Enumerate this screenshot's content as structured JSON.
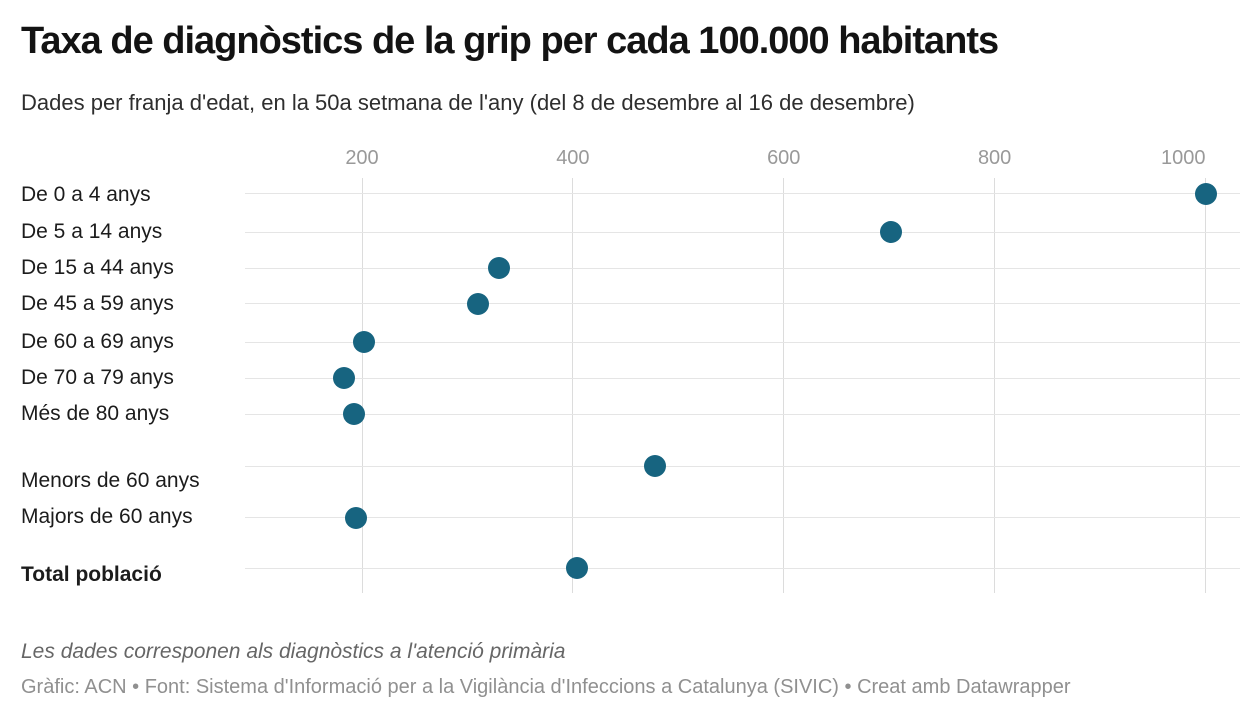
{
  "header": {
    "title": "Taxa de diagnòstics de la grip per cada 100.000 habitants",
    "subtitle": "Dades per franja d'edat, en la 50a setmana de l'any (del 8 de desembre al 16 de desembre)"
  },
  "chart_data": {
    "type": "scatter",
    "variant": "horizontal-dot-plot",
    "title": "Taxa de diagnòstics de la grip per cada 100.000 habitants",
    "subtitle": "Dades per franja d'edat, en la 50a setmana de l'any (del 8 de desembre al 16 de desembre)",
    "categories": [
      "De 0 a 4 anys",
      "De 5 a 14 anys",
      "De 15 a 44 anys",
      "De 45 a 59 anys",
      "De 60 a 69 anys",
      "De 70 a 79 anys",
      "Més de 80 anys",
      "Menors de 60 anys",
      "Majors de 60 anys",
      "Total població"
    ],
    "values": [
      1000,
      702,
      330,
      310,
      202,
      183,
      192,
      478,
      194,
      404
    ],
    "bold_categories": [
      "Total població"
    ],
    "x_ticks": [
      200,
      400,
      600,
      800,
      1000
    ],
    "x_tick_labels": [
      "200",
      "400",
      "600",
      "800",
      "1000"
    ],
    "xlim": [
      90,
      1033
    ],
    "xlabel": "",
    "ylabel": "",
    "grid": true,
    "legend": "none",
    "dot_color": "#176480",
    "vgrid_color": "#dcdcdc",
    "hgrid_color": "#e5e5e5",
    "tick_label_color": "#999999"
  },
  "footer": {
    "note": "Les dades corresponen als diagnòstics a l'atenció primària",
    "credit": "Gràfic: ACN • Font: Sistema d'Informació per a la Vigilància d'Infeccions a Catalunya (SIVIC) • Creat amb Datawrapper"
  }
}
